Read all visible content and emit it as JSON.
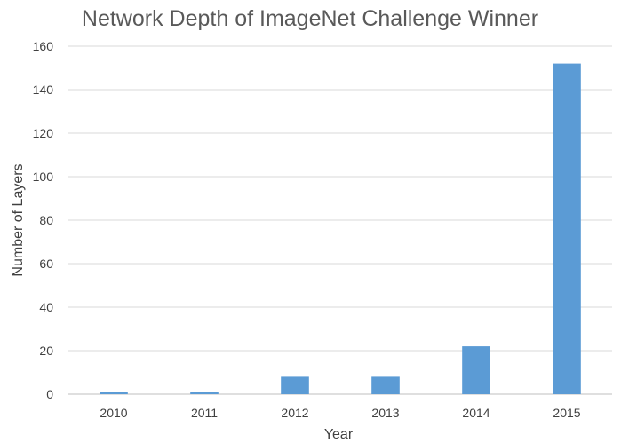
{
  "chart_data": {
    "type": "bar",
    "title": "Network Depth of ImageNet Challenge Winner",
    "xlabel": "Year",
    "ylabel": "Number of Layers",
    "categories": [
      "2010",
      "2011",
      "2012",
      "2013",
      "2014",
      "2015"
    ],
    "values": [
      1,
      1,
      8,
      8,
      22,
      152
    ],
    "ylim": [
      0,
      160
    ],
    "yticks": [
      0,
      20,
      40,
      60,
      80,
      100,
      120,
      140,
      160
    ],
    "grid": true,
    "legend": "none",
    "bar_color": "#5b9bd5"
  }
}
